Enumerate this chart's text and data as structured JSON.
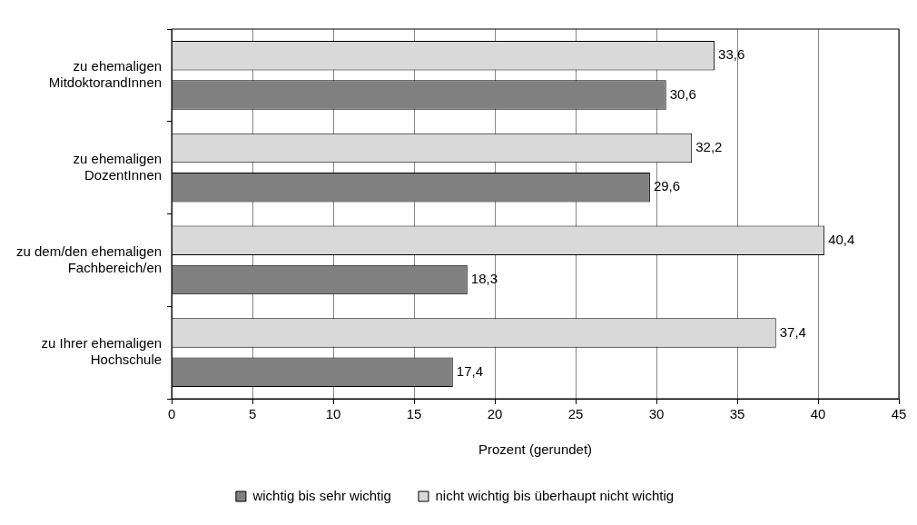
{
  "chart_data": {
    "type": "bar",
    "orientation": "horizontal",
    "xlabel": "Prozent (gerundet)",
    "categories": [
      "zu ehemaligen MitdoktorandInnen",
      "zu ehemaligen DozentInnen",
      "zu dem/den ehemaligen Fachbereich/en",
      "zu Ihrer ehemaligen Hochschule"
    ],
    "series": [
      {
        "name": "wichtig bis sehr wichtig",
        "color": "#808080",
        "values": [
          30.6,
          29.6,
          18.3,
          17.4
        ],
        "value_labels": [
          "30,6",
          "29,6",
          "18,3",
          "17,4"
        ]
      },
      {
        "name": "nicht wichtig bis überhaupt nicht wichtig",
        "color": "#d9d9d9",
        "values": [
          33.6,
          32.2,
          40.4,
          37.4
        ],
        "value_labels": [
          "33,6",
          "32,2",
          "40,4",
          "37,4"
        ]
      }
    ],
    "xlim": [
      0,
      45
    ],
    "xticks": [
      0,
      5,
      10,
      15,
      20,
      25,
      30,
      35,
      40,
      45
    ],
    "grid": "x",
    "legend": "bottom"
  }
}
